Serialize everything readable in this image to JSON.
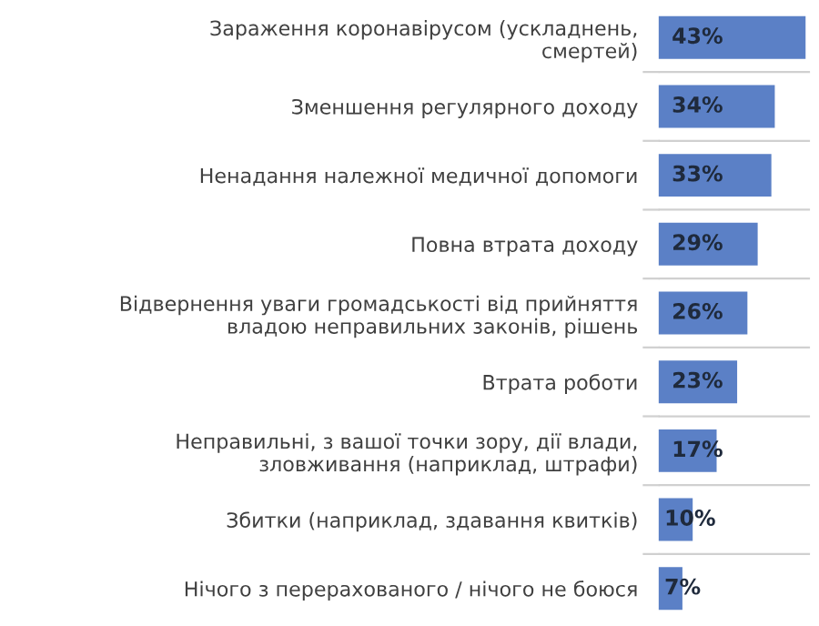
{
  "chart_data": {
    "type": "bar",
    "orientation": "horizontal",
    "categories": [
      "Зараження коронавірусом (ускладнень,\nсмертей)",
      "Зменшення регулярного доходу",
      "Ненадання належної медичної допомоги",
      "Повна втрата доходу",
      "Відвернення уваги громадськості від прийняття\nвладою неправильних законів, рішень",
      "Втрата роботи",
      "Неправильні, з вашої точки зору, дії влади,\nзловживання (наприклад, штрафи)",
      "Збитки (наприклад, здавання квитків)",
      "Нічого з перерахованого / нічого не боюся"
    ],
    "values": [
      43,
      34,
      33,
      29,
      26,
      23,
      17,
      10,
      7
    ],
    "value_labels": [
      "43%",
      "34%",
      "33%",
      "29%",
      "26%",
      "23%",
      "17%",
      "10%",
      "7%"
    ],
    "color": "#5b80c6",
    "grid": "y"
  }
}
